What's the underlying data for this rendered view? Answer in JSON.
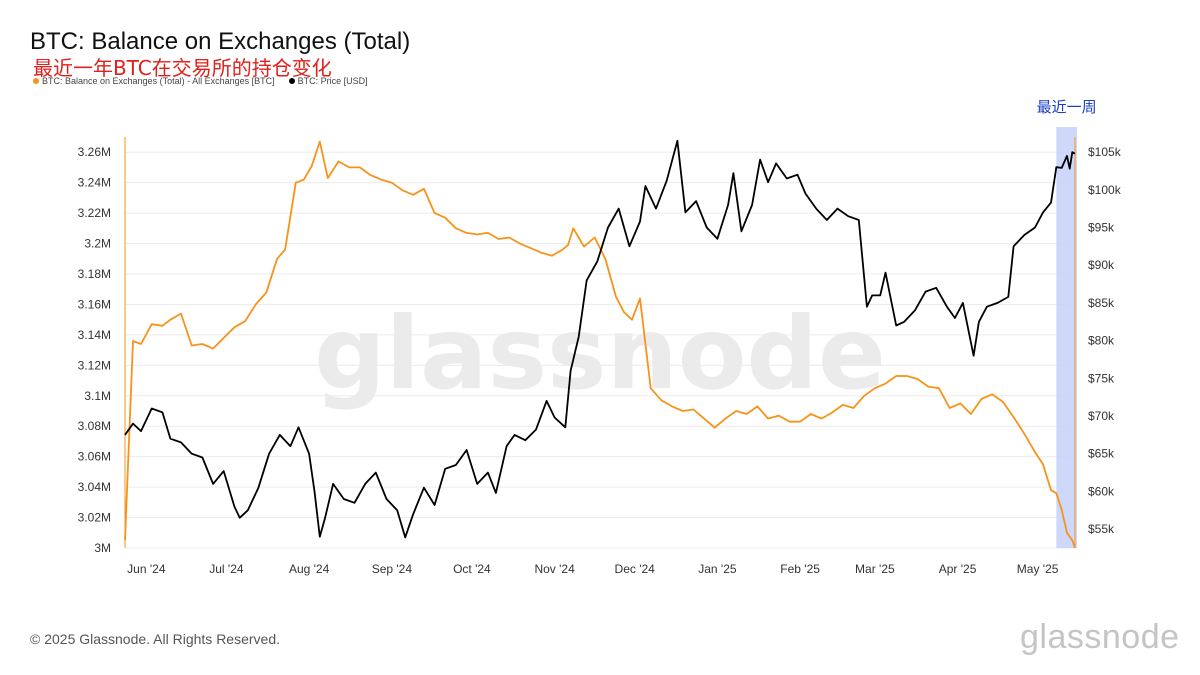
{
  "header": {
    "title": "BTC: Balance on Exchanges (Total)",
    "subtitle": "最近一年BTC在交易所的持仓变化",
    "legend": [
      {
        "label": "BTC: Balance on Exchanges (Total) - All Exchanges [BTC]",
        "color": "#f7931a"
      },
      {
        "label": "BTC: Price [USD]",
        "color": "#000000"
      }
    ]
  },
  "footer": {
    "copyright": "© 2025 Glassnode. All Rights Reserved.",
    "brand": "glassnode"
  },
  "chart_data": {
    "type": "line",
    "watermark": "glassnode",
    "annotation": {
      "label": "最近一周",
      "highlight_color": "#c9d4fb"
    },
    "x_tick_labels": [
      "Jun '24",
      "Jul '24",
      "Aug '24",
      "Sep '24",
      "Oct '24",
      "Nov '24",
      "Dec '24",
      "Jan '25",
      "Feb '25",
      "Mar '25",
      "Apr '25",
      "May '25"
    ],
    "y_left_ticks": [
      "3M",
      "3.02M",
      "3.04M",
      "3.06M",
      "3.08M",
      "3.1M",
      "3.12M",
      "3.14M",
      "3.16M",
      "3.18M",
      "3.2M",
      "3.22M",
      "3.24M",
      "3.26M"
    ],
    "y_right_ticks": [
      "$55k",
      "$60k",
      "$65k",
      "$70k",
      "$75k",
      "$80k",
      "$85k",
      "$90k",
      "$95k",
      "$100k",
      "$105k"
    ],
    "ylim_left": [
      3000000,
      3270000
    ],
    "ylim_right": [
      52500,
      107000
    ],
    "xlim": [
      "2024-05-24",
      "2025-05-15"
    ],
    "highlight_range": [
      "2025-05-08",
      "2025-05-15"
    ],
    "series": [
      {
        "name": "BTC: Balance on Exchanges (Total) - All Exchanges [BTC]",
        "axis": "left",
        "color": "#f7931a",
        "x": [
          "2024-05-24",
          "2024-05-27",
          "2024-05-30",
          "2024-06-03",
          "2024-06-07",
          "2024-06-10",
          "2024-06-14",
          "2024-06-18",
          "2024-06-22",
          "2024-06-26",
          "2024-06-30",
          "2024-07-04",
          "2024-07-08",
          "2024-07-12",
          "2024-07-16",
          "2024-07-20",
          "2024-07-23",
          "2024-07-27",
          "2024-07-30",
          "2024-08-02",
          "2024-08-05",
          "2024-08-08",
          "2024-08-12",
          "2024-08-16",
          "2024-08-20",
          "2024-08-24",
          "2024-08-28",
          "2024-09-01",
          "2024-09-05",
          "2024-09-09",
          "2024-09-13",
          "2024-09-17",
          "2024-09-21",
          "2024-09-25",
          "2024-09-29",
          "2024-10-03",
          "2024-10-07",
          "2024-10-11",
          "2024-10-15",
          "2024-10-19",
          "2024-10-23",
          "2024-10-27",
          "2024-10-31",
          "2024-11-04",
          "2024-11-06",
          "2024-11-08",
          "2024-11-12",
          "2024-11-16",
          "2024-11-20",
          "2024-11-24",
          "2024-11-27",
          "2024-11-30",
          "2024-12-03",
          "2024-12-07",
          "2024-12-11",
          "2024-12-15",
          "2024-12-19",
          "2024-12-23",
          "2024-12-27",
          "2024-12-31",
          "2025-01-04",
          "2025-01-08",
          "2025-01-12",
          "2025-01-16",
          "2025-01-20",
          "2025-01-24",
          "2025-01-28",
          "2025-02-01",
          "2025-02-05",
          "2025-02-09",
          "2025-02-13",
          "2025-02-17",
          "2025-02-21",
          "2025-02-25",
          "2025-03-01",
          "2025-03-05",
          "2025-03-09",
          "2025-03-13",
          "2025-03-17",
          "2025-03-21",
          "2025-03-25",
          "2025-03-29",
          "2025-04-02",
          "2025-04-06",
          "2025-04-10",
          "2025-04-14",
          "2025-04-18",
          "2025-04-22",
          "2025-04-26",
          "2025-04-30",
          "2025-05-03",
          "2025-05-06",
          "2025-05-08",
          "2025-05-10",
          "2025-05-12",
          "2025-05-14",
          "2025-05-15"
        ],
        "values": [
          3005000,
          3136000,
          3134000,
          3147000,
          3146000,
          3150000,
          3154000,
          3133000,
          3134000,
          3131000,
          3138000,
          3145000,
          3149000,
          3160000,
          3168000,
          3190000,
          3196000,
          3240000,
          3242000,
          3251000,
          3267000,
          3243000,
          3254000,
          3250000,
          3250000,
          3245000,
          3242000,
          3240000,
          3235000,
          3232000,
          3236000,
          3220000,
          3217000,
          3210000,
          3207000,
          3206000,
          3207000,
          3203000,
          3204000,
          3200000,
          3197000,
          3194000,
          3192000,
          3196000,
          3199000,
          3210000,
          3198000,
          3204000,
          3190000,
          3165000,
          3155000,
          3150000,
          3164000,
          3105000,
          3097000,
          3093000,
          3090000,
          3091000,
          3085000,
          3079000,
          3085000,
          3090000,
          3088000,
          3093000,
          3085000,
          3087000,
          3083000,
          3083000,
          3088000,
          3085000,
          3089000,
          3094000,
          3092000,
          3100000,
          3105000,
          3108000,
          3113000,
          3113000,
          3111000,
          3106000,
          3105000,
          3092000,
          3095000,
          3088000,
          3098000,
          3101000,
          3096000,
          3086000,
          3075000,
          3063000,
          3055000,
          3038000,
          3036000,
          3025000,
          3010000,
          3005000,
          3000000
        ]
      },
      {
        "name": "BTC: Price [USD]",
        "axis": "right",
        "color": "#000000",
        "x": [
          "2024-05-24",
          "2024-05-27",
          "2024-05-30",
          "2024-06-03",
          "2024-06-07",
          "2024-06-10",
          "2024-06-14",
          "2024-06-18",
          "2024-06-22",
          "2024-06-26",
          "2024-06-30",
          "2024-07-04",
          "2024-07-06",
          "2024-07-09",
          "2024-07-13",
          "2024-07-17",
          "2024-07-21",
          "2024-07-25",
          "2024-07-28",
          "2024-08-01",
          "2024-08-03",
          "2024-08-05",
          "2024-08-07",
          "2024-08-10",
          "2024-08-14",
          "2024-08-18",
          "2024-08-22",
          "2024-08-26",
          "2024-08-30",
          "2024-09-03",
          "2024-09-06",
          "2024-09-09",
          "2024-09-13",
          "2024-09-17",
          "2024-09-21",
          "2024-09-25",
          "2024-09-29",
          "2024-10-03",
          "2024-10-07",
          "2024-10-10",
          "2024-10-14",
          "2024-10-17",
          "2024-10-21",
          "2024-10-25",
          "2024-10-29",
          "2024-11-01",
          "2024-11-05",
          "2024-11-07",
          "2024-11-10",
          "2024-11-13",
          "2024-11-17",
          "2024-11-21",
          "2024-11-25",
          "2024-11-29",
          "2024-12-03",
          "2024-12-05",
          "2024-12-09",
          "2024-12-13",
          "2024-12-17",
          "2024-12-20",
          "2024-12-24",
          "2024-12-28",
          "2025-01-01",
          "2025-01-05",
          "2025-01-07",
          "2025-01-10",
          "2025-01-14",
          "2025-01-17",
          "2025-01-20",
          "2025-01-23",
          "2025-01-27",
          "2025-01-31",
          "2025-02-03",
          "2025-02-07",
          "2025-02-11",
          "2025-02-15",
          "2025-02-19",
          "2025-02-23",
          "2025-02-26",
          "2025-02-28",
          "2025-03-03",
          "2025-03-05",
          "2025-03-09",
          "2025-03-12",
          "2025-03-16",
          "2025-03-20",
          "2025-03-24",
          "2025-03-28",
          "2025-03-31",
          "2025-04-03",
          "2025-04-07",
          "2025-04-09",
          "2025-04-12",
          "2025-04-16",
          "2025-04-20",
          "2025-04-22",
          "2025-04-26",
          "2025-04-30",
          "2025-05-03",
          "2025-05-06",
          "2025-05-08",
          "2025-05-10",
          "2025-05-12",
          "2025-05-13",
          "2025-05-14",
          "2025-05-15"
        ],
        "values": [
          67500,
          69000,
          68000,
          71000,
          70500,
          67000,
          66500,
          65000,
          64500,
          61000,
          62700,
          58000,
          56500,
          57500,
          60500,
          65000,
          67500,
          66000,
          68500,
          65000,
          60000,
          54000,
          56500,
          61000,
          59000,
          58500,
          61000,
          62500,
          59000,
          57500,
          53900,
          57000,
          60500,
          58200,
          63000,
          63500,
          65500,
          61000,
          62500,
          59800,
          66000,
          67500,
          66800,
          68200,
          72000,
          69800,
          68500,
          76000,
          80500,
          88000,
          90500,
          95000,
          97500,
          92500,
          95800,
          100500,
          97500,
          101200,
          106500,
          97000,
          98500,
          95000,
          93500,
          98000,
          102200,
          94500,
          98000,
          104000,
          101000,
          103500,
          101500,
          102000,
          99500,
          97500,
          96000,
          97500,
          96500,
          96000,
          84500,
          86000,
          86000,
          89000,
          82000,
          82500,
          84000,
          86500,
          87000,
          84500,
          83000,
          85000,
          78000,
          82500,
          84500,
          85000,
          85800,
          92500,
          94000,
          95000,
          97000,
          98300,
          103000,
          102900,
          104500,
          102800,
          105000,
          104800
        ]
      }
    ]
  }
}
